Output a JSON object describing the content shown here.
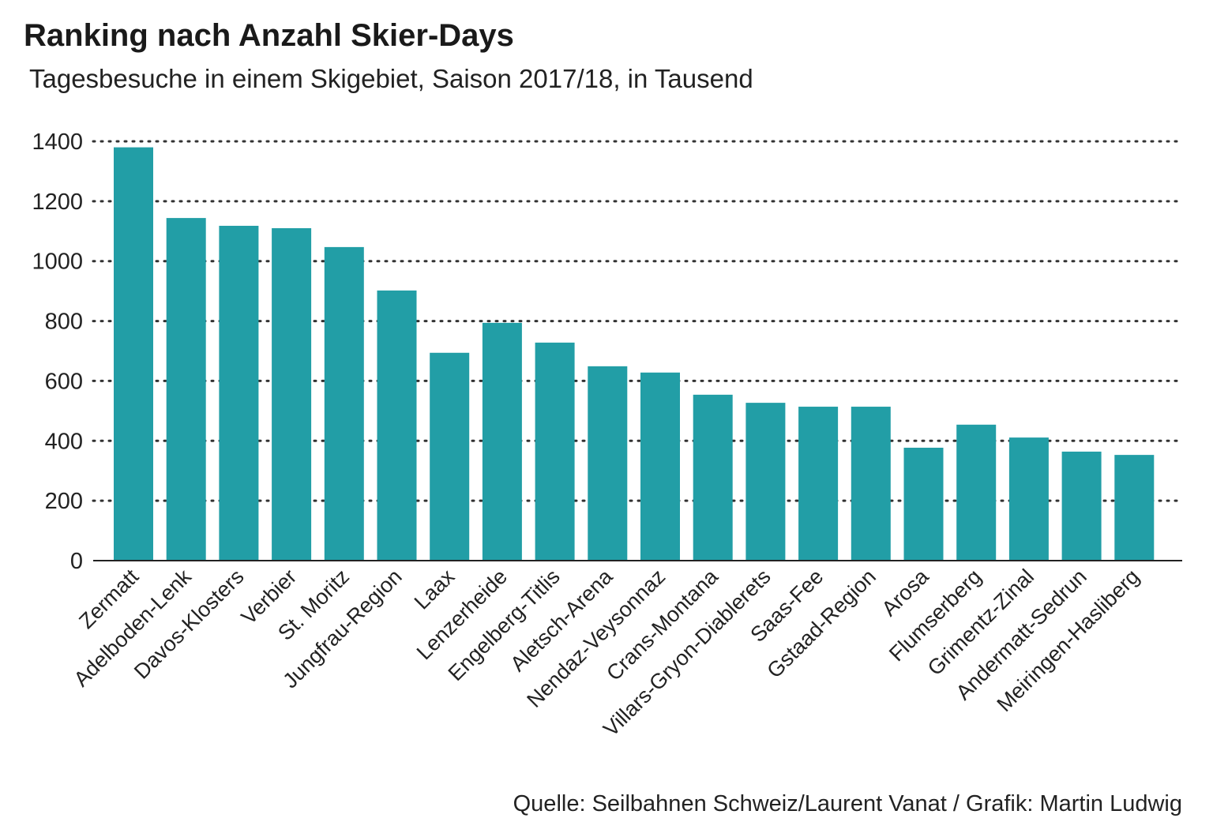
{
  "chart_data": {
    "type": "bar",
    "title": "Ranking nach Anzahl Skier-Days",
    "subtitle": "Tagesbesuche in einem Skigebiet, Saison 2017/18, in Tausend",
    "source": "Quelle: Seilbahnen Schweiz/Laurent Vanat / Grafik: Martin Ludwig",
    "xlabel": "",
    "ylabel": "",
    "ylim": [
      0,
      1400
    ],
    "yticks": [
      0,
      200,
      400,
      600,
      800,
      1000,
      1200,
      1400
    ],
    "grid": true,
    "bar_color": "#229ea6",
    "categories": [
      "Zermatt",
      "Adelboden-Lenk",
      "Davos-Klosters",
      "Verbier",
      "St. Moritz",
      "Jungfrau-Region",
      "Laax",
      "Lenzerheide",
      "Engelberg-Titlis",
      "Aletsch-Arena",
      "Nendaz-Veysonnaz",
      "Crans-Montana",
      "Villars-Gryon-Diablerets",
      "Saas-Fee",
      "Gstaad-Region",
      "Arosa",
      "Flumserberg",
      "Grimentz-Zinal",
      "Andermatt-Sedrun",
      "Meiringen-Hasliberg"
    ],
    "values": [
      1380,
      1144,
      1118,
      1110,
      1047,
      902,
      694,
      794,
      728,
      649,
      628,
      554,
      527,
      514,
      514,
      377,
      454,
      411,
      364,
      353
    ]
  }
}
